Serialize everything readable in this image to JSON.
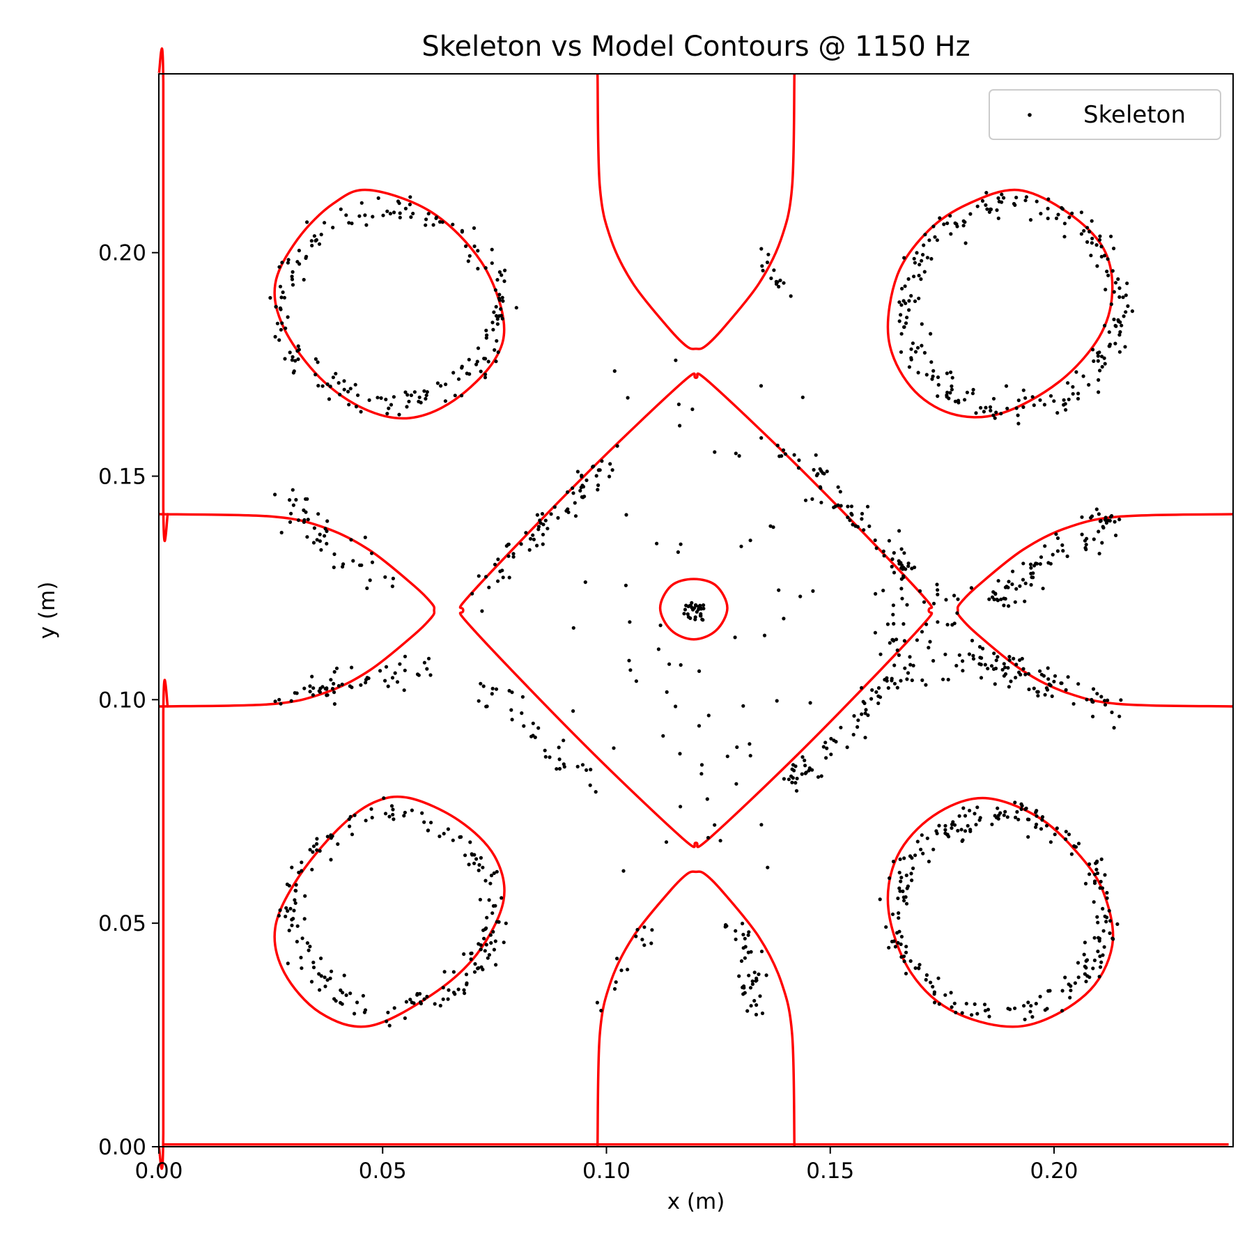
{
  "chart_data": {
    "type": "scatter",
    "title": "Skeleton vs Model Contours @ 1150 Hz",
    "xlabel": "x (m)",
    "ylabel": "y (m)",
    "xlim": [
      0,
      0.24
    ],
    "ylim": [
      0,
      0.24
    ],
    "xticks": [
      {
        "value": 0.0,
        "label": "0.00"
      },
      {
        "value": 0.05,
        "label": "0.05"
      },
      {
        "value": 0.1,
        "label": "0.10"
      },
      {
        "value": 0.15,
        "label": "0.15"
      },
      {
        "value": 0.2,
        "label": "0.20"
      }
    ],
    "yticks": [
      {
        "value": 0.0,
        "label": "0.00"
      },
      {
        "value": 0.05,
        "label": "0.05"
      },
      {
        "value": 0.1,
        "label": "0.10"
      },
      {
        "value": 0.15,
        "label": "0.15"
      },
      {
        "value": 0.2,
        "label": "0.20"
      }
    ],
    "grid": false,
    "legend": {
      "position": "top-right",
      "entries": [
        "Skeleton"
      ]
    },
    "colors": {
      "skeleton": "#000000",
      "contour": "#ff0000"
    },
    "series": [
      {
        "name": "Skeleton",
        "kind": "scatter",
        "color": "#000000",
        "clusters": [
          {
            "shape": "arc",
            "cx": 0.052,
            "cy": 0.188,
            "rx": 0.0245,
            "ry": 0.0215,
            "from": 0,
            "to": 360,
            "n": 190,
            "spread": 0.0016
          },
          {
            "shape": "arc",
            "cx": 0.191,
            "cy": 0.188,
            "rx": 0.0235,
            "ry": 0.023,
            "from": 0,
            "to": 360,
            "n": 230,
            "spread": 0.0016
          },
          {
            "shape": "arc",
            "cx": 0.052,
            "cy": 0.053,
            "rx": 0.0225,
            "ry": 0.0215,
            "from": 0,
            "to": 360,
            "n": 190,
            "spread": 0.0016
          },
          {
            "shape": "arc",
            "cx": 0.188,
            "cy": 0.052,
            "rx": 0.0235,
            "ry": 0.022,
            "from": 0,
            "to": 360,
            "n": 230,
            "spread": 0.0016
          },
          {
            "shape": "line",
            "x1": 0.073,
            "y1": 0.125,
            "x2": 0.102,
            "y2": 0.156,
            "n": 70,
            "spread": 0.0015
          },
          {
            "shape": "line",
            "x1": 0.139,
            "y1": 0.157,
            "x2": 0.168,
            "y2": 0.128,
            "n": 70,
            "spread": 0.0016
          },
          {
            "shape": "line",
            "x1": 0.072,
            "y1": 0.104,
            "x2": 0.095,
            "y2": 0.083,
            "n": 35,
            "spread": 0.0016
          },
          {
            "shape": "line",
            "x1": 0.141,
            "y1": 0.081,
            "x2": 0.168,
            "y2": 0.108,
            "n": 65,
            "spread": 0.0018
          },
          {
            "shape": "line",
            "x1": 0.026,
            "y1": 0.145,
            "x2": 0.052,
            "y2": 0.125,
            "n": 45,
            "spread": 0.0022
          },
          {
            "shape": "line",
            "x1": 0.027,
            "y1": 0.1,
            "x2": 0.062,
            "y2": 0.108,
            "n": 55,
            "spread": 0.0018
          },
          {
            "shape": "line",
            "x1": 0.186,
            "y1": 0.122,
            "x2": 0.213,
            "y2": 0.141,
            "n": 80,
            "spread": 0.0018
          },
          {
            "shape": "line",
            "x1": 0.18,
            "y1": 0.11,
            "x2": 0.214,
            "y2": 0.098,
            "n": 80,
            "spread": 0.0018
          },
          {
            "shape": "line",
            "x1": 0.135,
            "y1": 0.201,
            "x2": 0.139,
            "y2": 0.19,
            "n": 14,
            "spread": 0.0012
          },
          {
            "shape": "line",
            "x1": 0.135,
            "y1": 0.029,
            "x2": 0.128,
            "y2": 0.051,
            "n": 40,
            "spread": 0.0016
          },
          {
            "shape": "line",
            "x1": 0.099,
            "y1": 0.032,
            "x2": 0.112,
            "y2": 0.052,
            "n": 14,
            "spread": 0.0012
          },
          {
            "shape": "arc",
            "cx": 0.1195,
            "cy": 0.1195,
            "rx": 0.0018,
            "ry": 0.0018,
            "from": 0,
            "to": 360,
            "n": 30,
            "spread": 0.0005
          },
          {
            "shape": "blob",
            "cx": 0.17,
            "cy": 0.115,
            "rx": 0.01,
            "ry": 0.012,
            "n": 50
          },
          {
            "shape": "blob",
            "cx": 0.12,
            "cy": 0.145,
            "rx": 0.028,
            "ry": 0.035,
            "n": 30
          },
          {
            "shape": "blob",
            "cx": 0.12,
            "cy": 0.09,
            "rx": 0.028,
            "ry": 0.03,
            "n": 40
          }
        ]
      },
      {
        "name": "",
        "kind": "contour",
        "color": "#ff0000",
        "lines": [
          {
            "closed": true,
            "points": [
              [
                0.047,
                0.214
              ],
              [
                0.061,
                0.209
              ],
              [
                0.072,
                0.198
              ],
              [
                0.077,
                0.185
              ],
              [
                0.075,
                0.176
              ],
              [
                0.066,
                0.167
              ],
              [
                0.056,
                0.163
              ],
              [
                0.046,
                0.165
              ],
              [
                0.036,
                0.172
              ],
              [
                0.028,
                0.183
              ],
              [
                0.026,
                0.193
              ],
              [
                0.031,
                0.203
              ],
              [
                0.039,
                0.211
              ]
            ]
          },
          {
            "closed": true,
            "points": [
              [
                0.192,
                0.214
              ],
              [
                0.203,
                0.209
              ],
              [
                0.211,
                0.201
              ],
              [
                0.213,
                0.191
              ],
              [
                0.21,
                0.181
              ],
              [
                0.201,
                0.171
              ],
              [
                0.188,
                0.164
              ],
              [
                0.177,
                0.164
              ],
              [
                0.168,
                0.17
              ],
              [
                0.163,
                0.181
              ],
              [
                0.165,
                0.195
              ],
              [
                0.172,
                0.205
              ],
              [
                0.181,
                0.211
              ]
            ]
          },
          {
            "closed": true,
            "points": [
              [
                0.056,
                0.078
              ],
              [
                0.067,
                0.073
              ],
              [
                0.075,
                0.065
              ],
              [
                0.077,
                0.055
              ],
              [
                0.071,
                0.043
              ],
              [
                0.061,
                0.034
              ],
              [
                0.047,
                0.027
              ],
              [
                0.036,
                0.03
              ],
              [
                0.028,
                0.039
              ],
              [
                0.026,
                0.049
              ],
              [
                0.031,
                0.06
              ],
              [
                0.04,
                0.071
              ],
              [
                0.048,
                0.077
              ]
            ]
          },
          {
            "closed": true,
            "points": [
              [
                0.184,
                0.078
              ],
              [
                0.196,
                0.074
              ],
              [
                0.205,
                0.066
              ],
              [
                0.211,
                0.057
              ],
              [
                0.213,
                0.045
              ],
              [
                0.207,
                0.034
              ],
              [
                0.193,
                0.027
              ],
              [
                0.178,
                0.03
              ],
              [
                0.168,
                0.039
              ],
              [
                0.163,
                0.053
              ],
              [
                0.165,
                0.065
              ],
              [
                0.173,
                0.074
              ]
            ]
          },
          {
            "closed": true,
            "points": [
              [
                0.12,
                0.172
              ],
              [
                0.123,
                0.171
              ],
              [
                0.145,
                0.15
              ],
              [
                0.17,
                0.124
              ],
              [
                0.172,
                0.12
              ],
              [
                0.17,
                0.116
              ],
              [
                0.145,
                0.09
              ],
              [
                0.123,
                0.069
              ],
              [
                0.12,
                0.068
              ],
              [
                0.117,
                0.069
              ],
              [
                0.095,
                0.09
              ],
              [
                0.07,
                0.116
              ],
              [
                0.068,
                0.12
              ],
              [
                0.07,
                0.124
              ],
              [
                0.095,
                0.15
              ],
              [
                0.117,
                0.171
              ]
            ]
          },
          {
            "closed": true,
            "points": [
              [
                0.1195,
                0.127
              ],
              [
                0.1245,
                0.1255
              ],
              [
                0.127,
                0.1205
              ],
              [
                0.1245,
                0.1155
              ],
              [
                0.1195,
                0.1135
              ],
              [
                0.1145,
                0.1155
              ],
              [
                0.112,
                0.1205
              ],
              [
                0.1145,
                0.1255
              ]
            ]
          },
          {
            "closed": false,
            "points": [
              [
                0.098,
                0.24
              ],
              [
                0.0985,
                0.215
              ],
              [
                0.101,
                0.203
              ],
              [
                0.106,
                0.193
              ],
              [
                0.114,
                0.183
              ],
              [
                0.118,
                0.179
              ],
              [
                0.12,
                0.1785
              ],
              [
                0.122,
                0.179
              ],
              [
                0.126,
                0.183
              ],
              [
                0.134,
                0.193
              ],
              [
                0.139,
                0.203
              ],
              [
                0.1415,
                0.215
              ],
              [
                0.142,
                0.24
              ]
            ]
          },
          {
            "closed": false,
            "points": [
              [
                0.098,
                0.0
              ],
              [
                0.0985,
                0.025
              ],
              [
                0.101,
                0.037
              ],
              [
                0.106,
                0.047
              ],
              [
                0.114,
                0.057
              ],
              [
                0.118,
                0.061
              ],
              [
                0.12,
                0.0615
              ],
              [
                0.122,
                0.061
              ],
              [
                0.126,
                0.057
              ],
              [
                0.134,
                0.047
              ],
              [
                0.139,
                0.037
              ],
              [
                0.1415,
                0.025
              ],
              [
                0.142,
                0.0
              ]
            ]
          },
          {
            "closed": false,
            "points": [
              [
                0.0,
                0.1415
              ],
              [
                0.025,
                0.141
              ],
              [
                0.037,
                0.1385
              ],
              [
                0.047,
                0.1335
              ],
              [
                0.057,
                0.1255
              ],
              [
                0.061,
                0.1215
              ],
              [
                0.0615,
                0.12
              ],
              [
                0.061,
                0.1185
              ],
              [
                0.057,
                0.1145
              ],
              [
                0.047,
                0.1065
              ],
              [
                0.037,
                0.1015
              ],
              [
                0.025,
                0.099
              ],
              [
                0.0,
                0.0985
              ]
            ]
          },
          {
            "closed": false,
            "points": [
              [
                0.24,
                0.1415
              ],
              [
                0.215,
                0.141
              ],
              [
                0.203,
                0.1385
              ],
              [
                0.193,
                0.1335
              ],
              [
                0.183,
                0.1255
              ],
              [
                0.179,
                0.1215
              ],
              [
                0.1785,
                0.12
              ],
              [
                0.179,
                0.1185
              ],
              [
                0.183,
                0.1145
              ],
              [
                0.193,
                0.1065
              ],
              [
                0.203,
                0.1015
              ],
              [
                0.215,
                0.099
              ],
              [
                0.24,
                0.0985
              ]
            ]
          },
          {
            "closed": false,
            "points": [
              [
                0.0,
                0.24
              ],
              [
                0.001,
                0.238
              ],
              [
                0.001,
                0.143
              ],
              [
                0.002,
                0.1415
              ]
            ]
          },
          {
            "closed": false,
            "points": [
              [
                0.002,
                0.0985
              ],
              [
                0.001,
                0.097
              ],
              [
                0.001,
                0.003
              ],
              [
                0.0,
                0.0
              ]
            ]
          },
          {
            "closed": false,
            "points": [
              [
                0.001,
                0.0005
              ],
              [
                0.239,
                0.0005
              ]
            ]
          }
        ]
      }
    ]
  }
}
